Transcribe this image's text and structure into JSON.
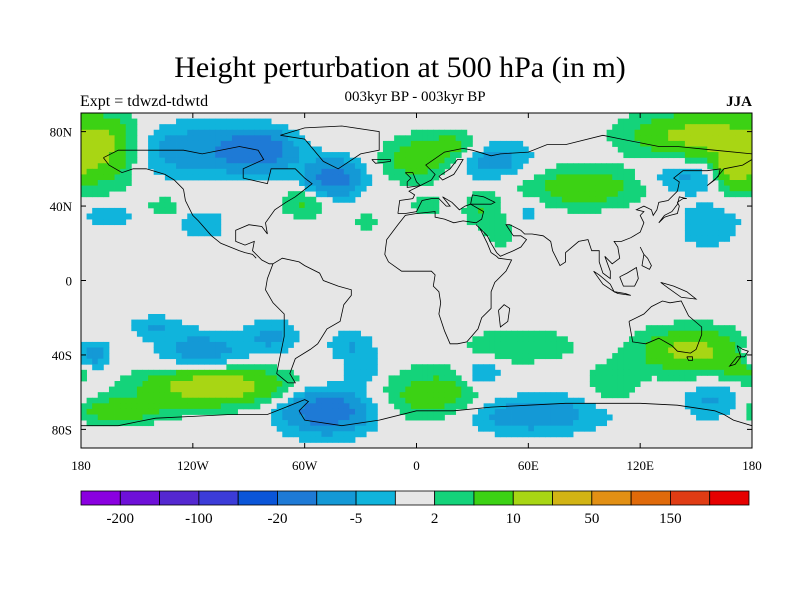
{
  "title": "Height perturbation at 500 hPa (in m)",
  "subtitle": "003kyr BP - 003kyr BP",
  "left_label": "Expt = tdwzd-tdwtd",
  "right_label": "JJA",
  "map": {
    "projection": "cylindrical equidistant",
    "lon_range": [
      -180,
      180
    ],
    "lat_range": [
      -90,
      90
    ],
    "lon_ticks": [
      {
        "value": -180,
        "label": "180"
      },
      {
        "value": -120,
        "label": "120W"
      },
      {
        "value": -60,
        "label": "60W"
      },
      {
        "value": 0,
        "label": "0"
      },
      {
        "value": 60,
        "label": "60E"
      },
      {
        "value": 120,
        "label": "120E"
      },
      {
        "value": 180,
        "label": "180"
      }
    ],
    "lat_ticks": [
      {
        "value": 80,
        "label": "80N"
      },
      {
        "value": 40,
        "label": "40N"
      },
      {
        "value": 0,
        "label": "0"
      },
      {
        "value": -40,
        "label": "40S"
      },
      {
        "value": -80,
        "label": "80S"
      }
    ],
    "background_color": "#e6e6e6",
    "coastline_color": "#000000",
    "field_blobs": [
      {
        "lon": -168,
        "lat": 70,
        "rlon": 20,
        "rlat": 18,
        "amp": 12
      },
      {
        "lon": -120,
        "lat": 70,
        "rlon": 40,
        "rlat": 14,
        "amp": -8
      },
      {
        "lon": -85,
        "lat": 70,
        "rlon": 18,
        "rlat": 10,
        "amp": -15
      },
      {
        "lon": -45,
        "lat": 55,
        "rlon": 15,
        "rlat": 10,
        "amp": -14
      },
      {
        "lon": -60,
        "lat": 42,
        "rlon": 13,
        "rlat": 8,
        "amp": 6
      },
      {
        "lon": -27,
        "lat": 32,
        "rlon": 6,
        "rlat": 5,
        "amp": 4
      },
      {
        "lon": -135,
        "lat": 40,
        "rlon": 10,
        "rlat": 5,
        "amp": 4
      },
      {
        "lon": -115,
        "lat": 30,
        "rlon": 14,
        "rlat": 8,
        "amp": -4
      },
      {
        "lon": -165,
        "lat": 35,
        "rlon": 14,
        "rlat": 6,
        "amp": -4
      },
      {
        "lon": 0,
        "lat": 65,
        "rlon": 18,
        "rlat": 12,
        "amp": 8
      },
      {
        "lon": 22,
        "lat": 72,
        "rlon": 15,
        "rlat": 8,
        "amp": 7
      },
      {
        "lon": 40,
        "lat": 65,
        "rlon": 20,
        "rlat": 10,
        "amp": -8
      },
      {
        "lon": 5,
        "lat": 40,
        "rlon": 8,
        "rlat": 6,
        "amp": 4
      },
      {
        "lon": 35,
        "lat": 38,
        "rlon": 10,
        "rlat": 10,
        "amp": 5
      },
      {
        "lon": 45,
        "lat": 25,
        "rlon": 7,
        "rlat": 8,
        "amp": 4
      },
      {
        "lon": 60,
        "lat": 38,
        "rlon": 6,
        "rlat": 6,
        "amp": -4
      },
      {
        "lon": 90,
        "lat": 50,
        "rlon": 32,
        "rlat": 11,
        "amp": 8
      },
      {
        "lon": 150,
        "lat": 78,
        "rlon": 35,
        "rlat": 12,
        "amp": 12
      },
      {
        "lon": 170,
        "lat": 60,
        "rlon": 12,
        "rlat": 12,
        "amp": 12
      },
      {
        "lon": 145,
        "lat": 55,
        "rlon": 20,
        "rlat": 8,
        "amp": -6
      },
      {
        "lon": 155,
        "lat": 30,
        "rlon": 18,
        "rlat": 12,
        "amp": -5
      },
      {
        "lon": 135,
        "lat": 30,
        "rlon": 10,
        "rlat": 8,
        "amp": 3
      },
      {
        "lon": -140,
        "lat": -25,
        "rlon": 14,
        "rlat": 6,
        "amp": -5
      },
      {
        "lon": -115,
        "lat": -38,
        "rlon": 22,
        "rlat": 10,
        "amp": -8
      },
      {
        "lon": -78,
        "lat": -30,
        "rlon": 14,
        "rlat": 9,
        "amp": -6
      },
      {
        "lon": -35,
        "lat": -35,
        "rlon": 12,
        "rlat": 8,
        "amp": -5
      },
      {
        "lon": -175,
        "lat": -40,
        "rlon": 10,
        "rlat": 8,
        "amp": -10
      },
      {
        "lon": -108,
        "lat": -57,
        "rlon": 38,
        "rlat": 10,
        "amp": 15
      },
      {
        "lon": -160,
        "lat": -70,
        "rlon": 26,
        "rlat": 7,
        "amp": 8
      },
      {
        "lon": -48,
        "lat": -70,
        "rlon": 24,
        "rlat": 12,
        "amp": -15
      },
      {
        "lon": -28,
        "lat": -48,
        "rlon": 10,
        "rlat": 8,
        "amp": -5
      },
      {
        "lon": 10,
        "lat": -62,
        "rlon": 30,
        "rlat": 14,
        "amp": 8
      },
      {
        "lon": 55,
        "lat": -35,
        "rlon": 30,
        "rlat": 9,
        "amp": 5
      },
      {
        "lon": 60,
        "lat": -72,
        "rlon": 38,
        "rlat": 10,
        "amp": -9
      },
      {
        "lon": 35,
        "lat": -50,
        "rlon": 10,
        "rlat": 8,
        "amp": -7
      },
      {
        "lon": 105,
        "lat": -55,
        "rlon": 14,
        "rlat": 10,
        "amp": 5
      },
      {
        "lon": 148,
        "lat": -38,
        "rlon": 28,
        "rlat": 12,
        "amp": 12
      },
      {
        "lon": 160,
        "lat": -65,
        "rlon": 16,
        "rlat": 10,
        "amp": -6
      },
      {
        "lon": 175,
        "lat": -48,
        "rlon": 10,
        "rlat": 8,
        "amp": 6
      }
    ]
  },
  "colorbar": {
    "colors": [
      "#8a00e0",
      "#6e10d8",
      "#5428d0",
      "#3c3cd8",
      "#0a55d8",
      "#1e7ad6",
      "#1499d6",
      "#10b4dc",
      "#e6e6e6",
      "#14d37a",
      "#3cd214",
      "#a8d614",
      "#d2b414",
      "#e29014",
      "#e06a0a",
      "#e03c14",
      "#e60000"
    ],
    "levels": [
      -200,
      -150,
      -100,
      -50,
      -20,
      -10,
      -5,
      -2,
      2,
      5,
      10,
      20,
      50,
      100,
      150,
      200
    ],
    "labels": [
      {
        "text": "-200",
        "at": 1
      },
      {
        "text": "-100",
        "at": 3
      },
      {
        "text": "-20",
        "at": 5
      },
      {
        "text": "-5",
        "at": 7
      },
      {
        "text": "2",
        "at": 9
      },
      {
        "text": "10",
        "at": 11
      },
      {
        "text": "50",
        "at": 13
      },
      {
        "text": "150",
        "at": 15
      }
    ]
  }
}
